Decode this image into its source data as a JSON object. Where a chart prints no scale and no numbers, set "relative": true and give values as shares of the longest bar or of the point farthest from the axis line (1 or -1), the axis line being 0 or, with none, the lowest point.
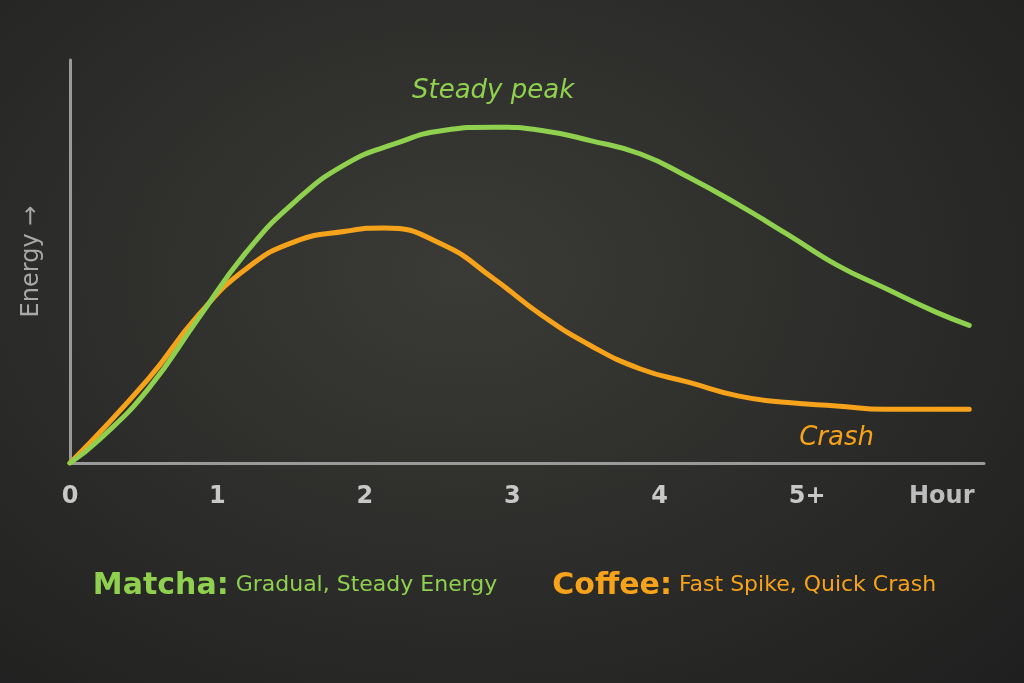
{
  "chart_data": {
    "type": "line",
    "relative": true,
    "xlabel": "Hour",
    "ylabel": "Energy →",
    "xlim": [
      0,
      6.2
    ],
    "xticks": [
      0,
      1,
      2,
      3,
      4,
      {
        "value": 5,
        "label": "5+"
      }
    ],
    "legend": "bottom",
    "marker": "none",
    "annotations": [
      {
        "text": "Steady peak",
        "x": 2.87,
        "y": 1.0
      },
      {
        "text": "Crash",
        "x": 5.2,
        "y": 0.17
      }
    ],
    "series": [
      {
        "name": "Matcha: Gradual, Steady Energy",
        "color": "#8fd14f",
        "x": [
          0,
          0.2,
          0.53,
          0.87,
          1.2,
          1.53,
          1.87,
          2.2,
          2.53,
          2.87,
          3.2,
          3.53,
          3.87,
          4.2,
          4.53,
          4.87,
          5.2,
          5.53,
          5.87,
          6.1
        ],
        "values": [
          0,
          0.07,
          0.22,
          0.43,
          0.63,
          0.78,
          0.89,
          0.95,
          0.99,
          1.0,
          0.99,
          0.96,
          0.92,
          0.85,
          0.77,
          0.68,
          0.59,
          0.52,
          0.45,
          0.41
        ]
      },
      {
        "name": "Coffee: Fast Spike, Quick Crash",
        "color": "#f7a21b",
        "x": [
          0,
          0.53,
          0.87,
          1.2,
          1.53,
          1.87,
          2.13,
          2.53,
          2.87,
          3.2,
          3.53,
          3.87,
          4.2,
          4.53,
          4.87,
          5.2,
          5.53,
          6.1
        ],
        "values": [
          0,
          0.25,
          0.44,
          0.58,
          0.66,
          0.69,
          0.7,
          0.65,
          0.55,
          0.44,
          0.35,
          0.28,
          0.24,
          0.2,
          0.18,
          0.17,
          0.16,
          0.16
        ]
      }
    ]
  }
}
